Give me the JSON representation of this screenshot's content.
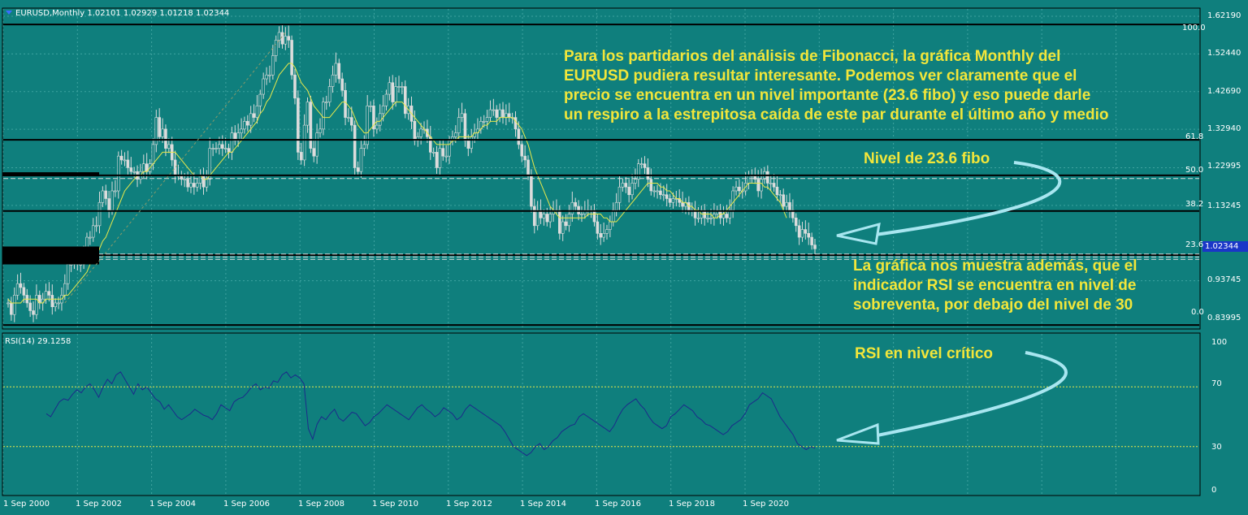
{
  "chart_title": "EURUSD,Monthly  1.02101 1.02929 1.01218 1.02344",
  "price_axis": [
    "1.62190",
    "1.52440",
    "1.42690",
    "1.32940",
    "1.22995",
    "1.13245",
    "1.02344",
    "0.93745",
    "0.83995"
  ],
  "current_price": "1.02344",
  "fib_levels": [
    "100.0",
    "61.8",
    "50.0",
    "38.2",
    "23.6",
    "0.0"
  ],
  "annotations": {
    "fibonacci": [
      "Para los partidarios del análisis de Fibonacci, la gráfica Monthly del",
      "EURUSD pudiera resultar interesante.    Podemos ver claramente que el",
      "precio se encuentra en un nivel importante (23.6 fibo) y eso puede darle",
      "un respiro a la estrepitosa caída de este par durante el último año y medio"
    ],
    "nivel": "Nivel de 23.6 fibo",
    "rsi_text": [
      "La gráfica nos muestra además, que el",
      "indicador RSI se encuentra en nivel de",
      "sobreventa, por debajo del nivel de 30"
    ],
    "rsi_critico": "RSI en nivel crítico"
  },
  "rsi_title": "RSI(14) 29.1258",
  "rsi_axis": [
    "100",
    "70",
    "30",
    "0"
  ],
  "x_axis": [
    "1 Sep 2000",
    "1 Sep 2002",
    "1 Sep 2004",
    "1 Sep 2006",
    "1 Sep 2008",
    "1 Sep 2010",
    "1 Sep 2012",
    "1 Sep 2014",
    "1 Sep 2016",
    "1 Sep 2018",
    "1 Sep 2020"
  ],
  "colors": {
    "background": "#0f7f7d",
    "candle": "#dcdcdc",
    "ma": "#e8e84a",
    "rsi": "#1c2a8a",
    "annotation": "#f2e63a",
    "arrow": "#a8e6f0",
    "level_line": "#000000"
  },
  "chart_data": [
    {
      "type": "line",
      "title": "EURUSD,Monthly",
      "x_start": "2000-09",
      "x_interval": "month",
      "ylim": [
        0.83995,
        1.6219
      ],
      "series": [
        {
          "name": "EURUSD",
          "values": [
            0.88,
            0.85,
            0.9,
            0.93,
            0.92,
            0.9,
            0.88,
            0.86,
            0.85,
            0.9,
            0.88,
            0.89,
            0.91,
            0.9,
            0.87,
            0.88,
            0.88,
            0.9,
            0.93,
            0.98,
            0.98,
            0.99,
            0.98,
            0.98,
            1.0,
            1.05,
            1.05,
            1.08,
            1.08,
            1.14,
            1.17,
            1.15,
            1.12,
            1.17,
            1.17,
            1.26,
            1.25,
            1.25,
            1.23,
            1.22,
            1.22,
            1.2,
            1.22,
            1.24,
            1.22,
            1.24,
            1.29,
            1.36,
            1.31,
            1.33,
            1.28,
            1.29,
            1.25,
            1.21,
            1.21,
            1.2,
            1.2,
            1.18,
            1.19,
            1.18,
            1.19,
            1.21,
            1.18,
            1.2,
            1.28,
            1.28,
            1.28,
            1.29,
            1.28,
            1.28,
            1.27,
            1.32,
            1.3,
            1.32,
            1.33,
            1.35,
            1.34,
            1.37,
            1.36,
            1.39,
            1.42,
            1.46,
            1.47,
            1.47,
            1.52,
            1.56,
            1.58,
            1.55,
            1.57,
            1.56,
            1.47,
            1.41,
            1.27,
            1.25,
            1.34,
            1.4,
            1.28,
            1.26,
            1.32,
            1.33,
            1.4,
            1.4,
            1.44,
            1.47,
            1.5,
            1.46,
            1.43,
            1.36,
            1.36,
            1.34,
            1.23,
            1.22,
            1.28,
            1.29,
            1.39,
            1.39,
            1.33,
            1.34,
            1.37,
            1.39,
            1.42,
            1.45,
            1.4,
            1.44,
            1.44,
            1.44,
            1.37,
            1.39,
            1.35,
            1.3,
            1.31,
            1.33,
            1.33,
            1.31,
            1.27,
            1.27,
            1.23,
            1.28,
            1.26,
            1.26,
            1.3,
            1.31,
            1.32,
            1.36,
            1.37,
            1.3,
            1.28,
            1.31,
            1.32,
            1.33,
            1.35,
            1.35,
            1.36,
            1.38,
            1.38,
            1.36,
            1.38,
            1.36,
            1.37,
            1.36,
            1.36,
            1.33,
            1.29,
            1.26,
            1.25,
            1.21,
            1.13,
            1.08,
            1.12,
            1.1,
            1.11,
            1.09,
            1.11,
            1.12,
            1.12,
            1.06,
            1.09,
            1.08,
            1.11,
            1.14,
            1.13,
            1.11,
            1.11,
            1.12,
            1.12,
            1.12,
            1.09,
            1.06,
            1.05,
            1.06,
            1.07,
            1.09,
            1.12,
            1.14,
            1.18,
            1.19,
            1.18,
            1.16,
            1.19,
            1.2,
            1.24,
            1.24,
            1.23,
            1.2,
            1.17,
            1.17,
            1.17,
            1.16,
            1.16,
            1.15,
            1.14,
            1.15,
            1.15,
            1.14,
            1.13,
            1.14,
            1.12,
            1.12,
            1.1,
            1.1,
            1.12,
            1.1,
            1.1,
            1.1,
            1.11,
            1.12,
            1.1,
            1.11,
            1.1,
            1.12,
            1.17,
            1.18,
            1.17,
            1.17,
            1.19,
            1.21,
            1.21,
            1.2,
            1.17,
            1.2,
            1.22,
            1.19,
            1.19,
            1.18,
            1.16,
            1.16,
            1.13,
            1.14,
            1.12,
            1.1,
            1.08,
            1.05,
            1.07,
            1.06,
            1.05,
            1.03,
            1.02
          ]
        },
        {
          "name": "MA",
          "values": [
            0.89,
            0.88,
            0.88,
            0.88,
            0.88,
            0.89,
            0.89,
            0.89,
            0.89,
            0.89,
            0.88,
            0.88,
            0.89,
            0.89,
            0.89,
            0.89,
            0.89,
            0.89,
            0.9,
            0.9,
            0.91,
            0.92,
            0.93,
            0.94,
            0.95,
            0.96,
            0.98,
            0.99,
            1.0,
            1.02,
            1.04,
            1.05,
            1.07,
            1.09,
            1.11,
            1.13,
            1.15,
            1.17,
            1.18,
            1.19,
            1.2,
            1.21,
            1.21,
            1.22,
            1.22,
            1.23,
            1.24,
            1.25,
            1.26,
            1.27,
            1.27,
            1.27,
            1.27,
            1.27,
            1.26,
            1.25,
            1.24,
            1.23,
            1.22,
            1.21,
            1.21,
            1.21,
            1.2,
            1.2,
            1.21,
            1.22,
            1.23,
            1.24,
            1.25,
            1.26,
            1.27,
            1.27,
            1.28,
            1.29,
            1.3,
            1.31,
            1.32,
            1.33,
            1.34,
            1.35,
            1.37,
            1.38,
            1.4,
            1.41,
            1.43,
            1.45,
            1.47,
            1.48,
            1.49,
            1.5,
            1.5,
            1.49,
            1.47,
            1.45,
            1.44,
            1.43,
            1.41,
            1.39,
            1.38,
            1.37,
            1.36,
            1.36,
            1.36,
            1.37,
            1.38,
            1.39,
            1.4,
            1.4,
            1.39,
            1.38,
            1.36,
            1.34,
            1.33,
            1.32,
            1.32,
            1.33,
            1.34,
            1.35,
            1.35,
            1.36,
            1.37,
            1.38,
            1.39,
            1.4,
            1.4,
            1.4,
            1.39,
            1.38,
            1.37,
            1.36,
            1.35,
            1.34,
            1.33,
            1.32,
            1.31,
            1.3,
            1.29,
            1.29,
            1.29,
            1.29,
            1.29,
            1.3,
            1.3,
            1.31,
            1.31,
            1.31,
            1.31,
            1.31,
            1.32,
            1.32,
            1.33,
            1.34,
            1.34,
            1.35,
            1.35,
            1.35,
            1.36,
            1.36,
            1.36,
            1.36,
            1.36,
            1.35,
            1.34,
            1.33,
            1.31,
            1.29,
            1.26,
            1.23,
            1.21,
            1.19,
            1.17,
            1.15,
            1.13,
            1.12,
            1.11,
            1.1,
            1.1,
            1.1,
            1.1,
            1.1,
            1.1,
            1.1,
            1.1,
            1.1,
            1.11,
            1.11,
            1.11,
            1.11,
            1.11,
            1.1,
            1.1,
            1.09,
            1.09,
            1.09,
            1.1,
            1.11,
            1.12,
            1.13,
            1.14,
            1.15,
            1.16,
            1.17,
            1.18,
            1.19,
            1.19,
            1.19,
            1.19,
            1.18,
            1.18,
            1.17,
            1.17,
            1.16,
            1.15,
            1.15,
            1.14,
            1.14,
            1.13,
            1.13,
            1.12,
            1.12,
            1.11,
            1.11,
            1.11,
            1.11,
            1.1,
            1.1,
            1.11,
            1.11,
            1.12,
            1.13,
            1.14,
            1.15,
            1.16,
            1.17,
            1.18,
            1.19,
            1.19,
            1.19,
            1.19,
            1.19,
            1.18,
            1.18,
            1.17,
            1.16,
            1.15,
            1.14,
            1.12,
            1.1
          ]
        }
      ],
      "fib_levels": [
        {
          "label": "100.0",
          "price": 1.6005
        },
        {
          "label": "61.8",
          "price": 1.3022
        },
        {
          "label": "50.0",
          "price": 1.2101
        },
        {
          "label": "38.2",
          "price": 1.118
        },
        {
          "label": "23.6",
          "price": 1.004
        },
        {
          "label": "0.0",
          "price": 0.823
        }
      ]
    },
    {
      "type": "line",
      "title": "RSI(14) 29.1258",
      "ylim": [
        0,
        100
      ],
      "levels": [
        70,
        30
      ],
      "series": [
        {
          "name": "RSI(14)",
          "values": [
            52,
            50,
            55,
            60,
            62,
            61,
            65,
            68,
            66,
            70,
            72,
            68,
            63,
            70,
            75,
            72,
            78,
            80,
            75,
            70,
            65,
            72,
            68,
            70,
            66,
            62,
            60,
            55,
            58,
            54,
            50,
            48,
            50,
            52,
            55,
            53,
            51,
            50,
            48,
            52,
            58,
            56,
            54,
            60,
            62,
            63,
            66,
            70,
            72,
            68,
            70,
            69,
            74,
            73,
            78,
            80,
            76,
            78,
            76,
            72,
            42,
            35,
            45,
            50,
            48,
            52,
            55,
            49,
            47,
            50,
            53,
            52,
            48,
            44,
            46,
            50,
            52,
            55,
            58,
            56,
            54,
            52,
            50,
            48,
            52,
            56,
            58,
            55,
            53,
            50,
            52,
            56,
            54,
            52,
            48,
            50,
            55,
            58,
            56,
            54,
            52,
            50,
            48,
            46,
            44,
            40,
            35,
            30,
            28,
            26,
            24,
            26,
            30,
            32,
            28,
            30,
            34,
            36,
            40,
            42,
            44,
            45,
            50,
            52,
            50,
            48,
            46,
            44,
            42,
            40,
            44,
            50,
            55,
            58,
            60,
            62,
            58,
            55,
            50,
            46,
            44,
            42,
            44,
            50,
            52,
            55,
            58,
            56,
            54,
            50,
            48,
            45,
            44,
            42,
            40,
            38,
            40,
            44,
            46,
            48,
            52,
            58,
            60,
            62,
            66,
            64,
            62,
            56,
            50,
            46,
            42,
            38,
            32,
            30,
            28,
            30,
            29
          ]
        }
      ]
    }
  ]
}
